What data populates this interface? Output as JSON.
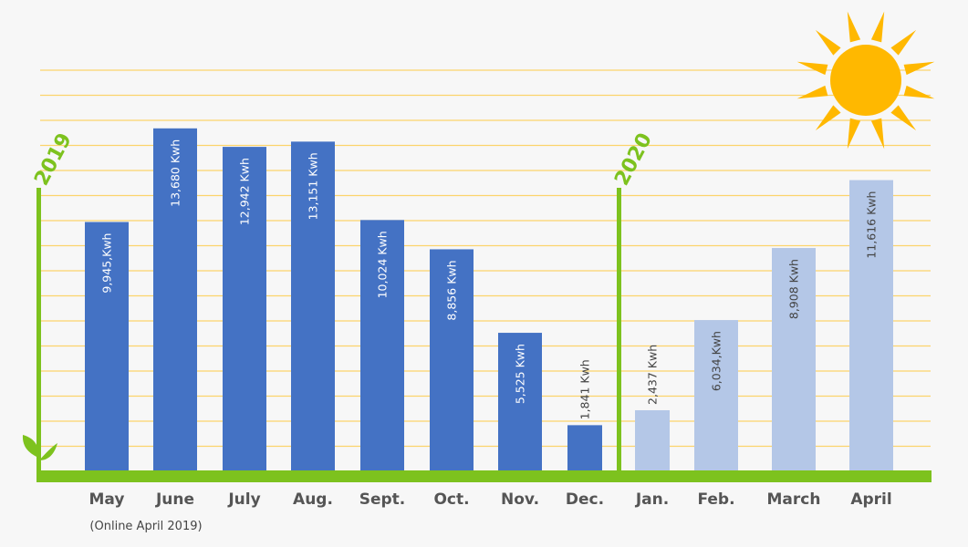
{
  "chart_data": {
    "type": "bar",
    "title": "",
    "xlabel": "",
    "ylabel": "",
    "ylim": [
      0,
      16000
    ],
    "grid": true,
    "categories": [
      "May",
      "June",
      "July",
      "Aug.",
      "Sept.",
      "Oct.",
      "Nov.",
      "Dec.",
      "Jan.",
      "Feb.",
      "March",
      "April"
    ],
    "series": [
      {
        "values": [
          9945,
          13680,
          12942,
          13151,
          10024,
          8856,
          5525,
          1841,
          2437,
          6034,
          8908,
          11616
        ],
        "labels": [
          "9,945,Kwh",
          "13,680 Kwh",
          "12,942 Kwh",
          "13,151 Kwh",
          "10,024 Kwh",
          "8,856 Kwh",
          "5,525 Kwh",
          "1,841 Kwh",
          "2,437 Kwh",
          "6,034,Kwh",
          "8,908 Kwh",
          "11,616 Kwh"
        ]
      }
    ],
    "year_markers": [
      {
        "label": "2019",
        "starts_at": "May"
      },
      {
        "label": "2020",
        "starts_at": "Jan."
      }
    ],
    "annotation": "(Online April 2019)"
  },
  "colors": {
    "bar_2019": "#4472c4",
    "bar_2020": "#b4c7e7",
    "axis": "#7dc21e",
    "grid": "#fbd46b",
    "sun": "#ffb800",
    "background": "#f7f7f7"
  },
  "icons": [
    "sun-icon",
    "sprout-icon"
  ]
}
